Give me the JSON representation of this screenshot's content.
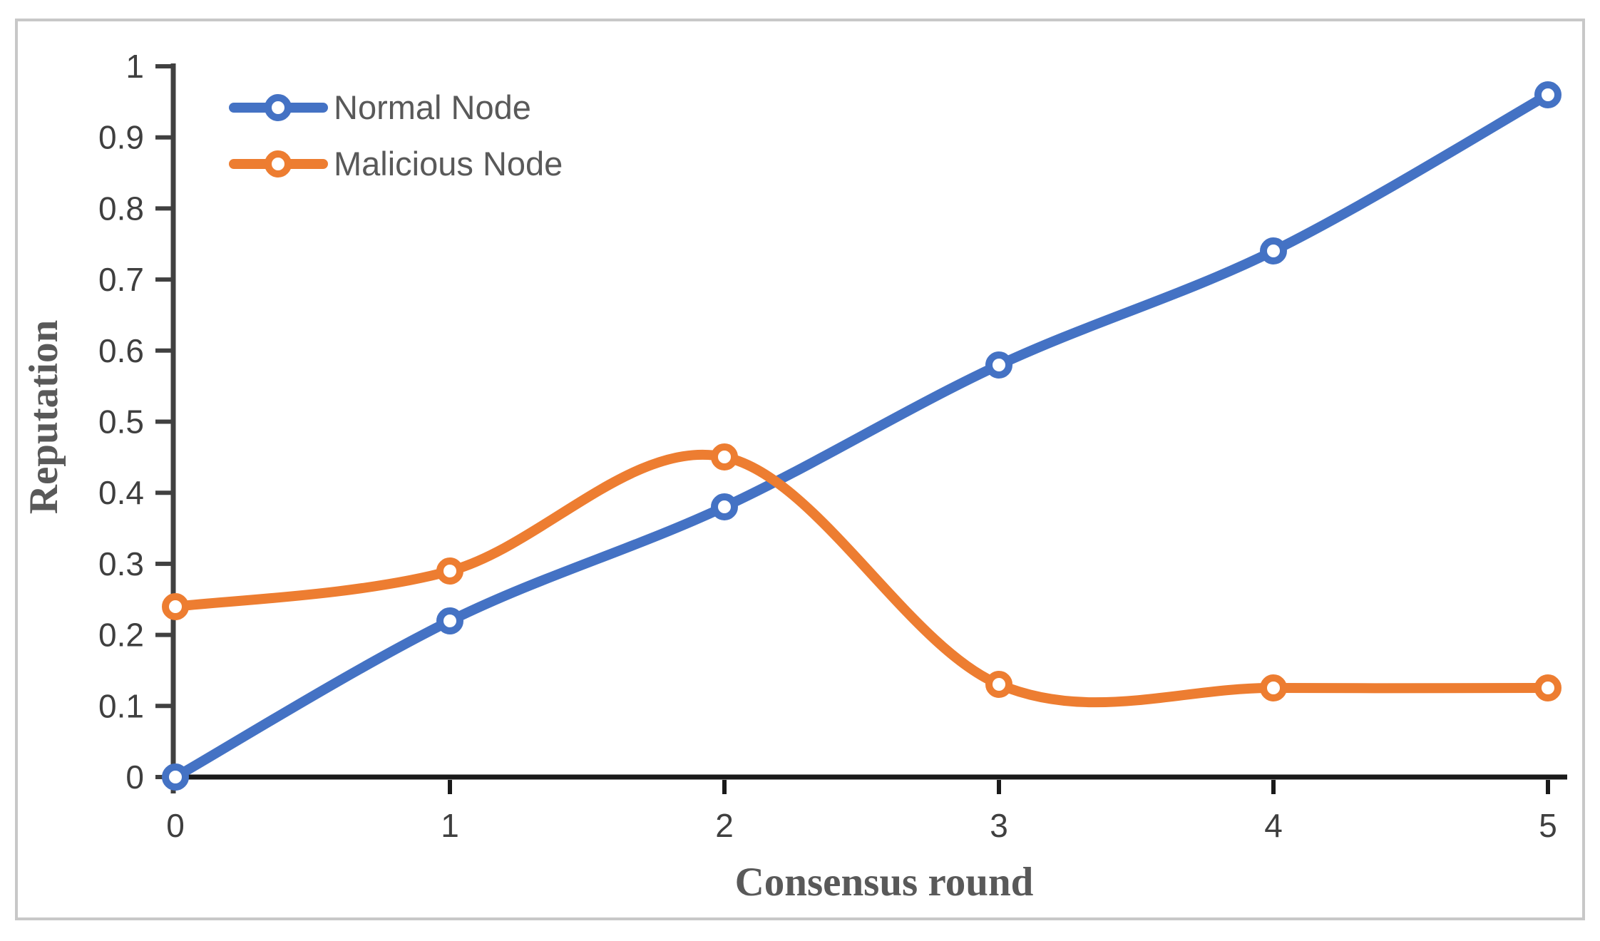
{
  "figure": {
    "description": "Line chart of node reputation versus consensus round",
    "border_color": "#c8c8c8",
    "background_color": "#ffffff"
  },
  "axes": {
    "y_title": "Reputation",
    "x_title": "Consensus round",
    "y_axis_color": "#404040",
    "x_axis_color": "#1a1a1a",
    "tick_label_color": "#3f3f3f",
    "title_color": "#595959"
  },
  "legend": {
    "items": [
      {
        "label": "Normal Node",
        "color": "#4472c4"
      },
      {
        "label": "Malicious Node",
        "color": "#ed7d31"
      }
    ],
    "position": "top-left"
  },
  "chart_data": {
    "type": "line",
    "title": "",
    "xlabel": "Consensus round",
    "ylabel": "Reputation",
    "x": [
      0,
      1,
      2,
      3,
      4,
      5
    ],
    "series": [
      {
        "name": "Normal Node",
        "color": "#4472c4",
        "values": [
          0,
          0.22,
          0.38,
          0.58,
          0.74,
          0.96
        ]
      },
      {
        "name": "Malicious Node",
        "color": "#ed7d31",
        "values": [
          0.24,
          0.29,
          0.45,
          0.13,
          0.125,
          0.125
        ]
      }
    ],
    "xlim": [
      0,
      5
    ],
    "ylim": [
      0,
      1
    ],
    "x_ticks": {
      "values": [
        0,
        1,
        2,
        3,
        4,
        5
      ],
      "labels": [
        "0",
        "1",
        "2",
        "3",
        "4",
        "5"
      ]
    },
    "y_ticks": {
      "values": [
        0,
        0.1,
        0.2,
        0.3,
        0.4,
        0.5,
        0.6,
        0.7,
        0.8,
        0.9,
        1
      ],
      "labels": [
        "0",
        "0.1",
        "0.2",
        "0.3",
        "0.4",
        "0.5",
        "0.6",
        "0.7",
        "0.8",
        "0.9",
        "1"
      ]
    },
    "grid": false,
    "legend_position": "top-left",
    "line_smoothing": true,
    "marker": "open-circle"
  }
}
